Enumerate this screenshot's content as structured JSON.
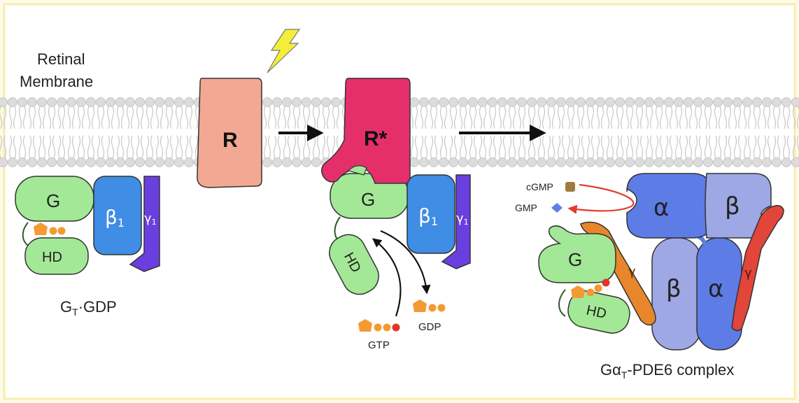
{
  "labels": {
    "membrane_line1": "Retinal",
    "membrane_line2": "Membrane",
    "gtgdp_g": "G",
    "gtgdp_t": "T",
    "gtgdp_rest": "·GDP",
    "complex_ga": "Gα",
    "complex_t": "T",
    "complex_rest": "-PDE6 complex",
    "gtp": "GTP",
    "gdp": "GDP",
    "cgmp": "cGMP",
    "gmp": "GMP"
  },
  "proteins": {
    "receptor": "R",
    "receptor_active": "R*",
    "g": "G",
    "hd": "HD",
    "beta": "β",
    "beta_sub": "1",
    "gamma": "γ",
    "gamma_sub": "1",
    "pde_alpha": "α",
    "pde_beta": "β",
    "pde_gamma": "γ"
  },
  "colors": {
    "background": "#fefbe6",
    "border": "#f4eeb0",
    "lipid_head": "#dcdcdc",
    "receptor": "#f2a892",
    "receptor_active": "#e52f6b",
    "g_protein": "#a3e896",
    "beta1": "#3f8de4",
    "gamma1": "#6a3fe0",
    "gtp": "#f39a33",
    "phosphate_red": "#e5322d",
    "pde_alpha": "#5e7ce6",
    "pde_beta": "#9da8e4",
    "pde_gamma_orange": "#e8862b",
    "pde_gamma_red": "#e2453a",
    "cgmp": "#a07a40",
    "gmp": "#5f7fe8",
    "arrow_red": "#e33d2a",
    "lightning": "#f4ee3a"
  }
}
